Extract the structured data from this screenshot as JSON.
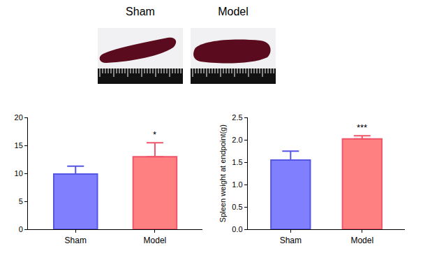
{
  "images": [
    {
      "label": "Sham"
    },
    {
      "label": "Model"
    }
  ],
  "chart_data": [
    {
      "type": "bar",
      "categories": [
        "Sham",
        "Model"
      ],
      "values": [
        9.9,
        13.0
      ],
      "errors": [
        1.4,
        2.5
      ],
      "colors": [
        "#8080ff",
        "#ff8080"
      ],
      "ylim": [
        0,
        20
      ],
      "yticks": [
        0,
        5,
        10,
        15,
        20
      ],
      "grid": false,
      "annotations": [
        {
          "text": "*",
          "x": "Model"
        }
      ]
    },
    {
      "type": "bar",
      "y_label": "Spleen weight at endpoint(g)",
      "categories": [
        "Sham",
        "Model"
      ],
      "values": [
        1.55,
        2.02
      ],
      "errors": [
        0.2,
        0.07
      ],
      "colors": [
        "#8080ff",
        "#ff8080"
      ],
      "ylim": [
        0,
        2.5
      ],
      "yticks": [
        {
          "value": 0,
          "label": "0.0"
        },
        0.5,
        {
          "value": 1,
          "label": "1.0"
        },
        1.5,
        {
          "value": 2,
          "label": "2.0"
        },
        2.5
      ],
      "grid": false,
      "annotations": [
        {
          "text": "***",
          "x": "Model"
        }
      ]
    }
  ]
}
